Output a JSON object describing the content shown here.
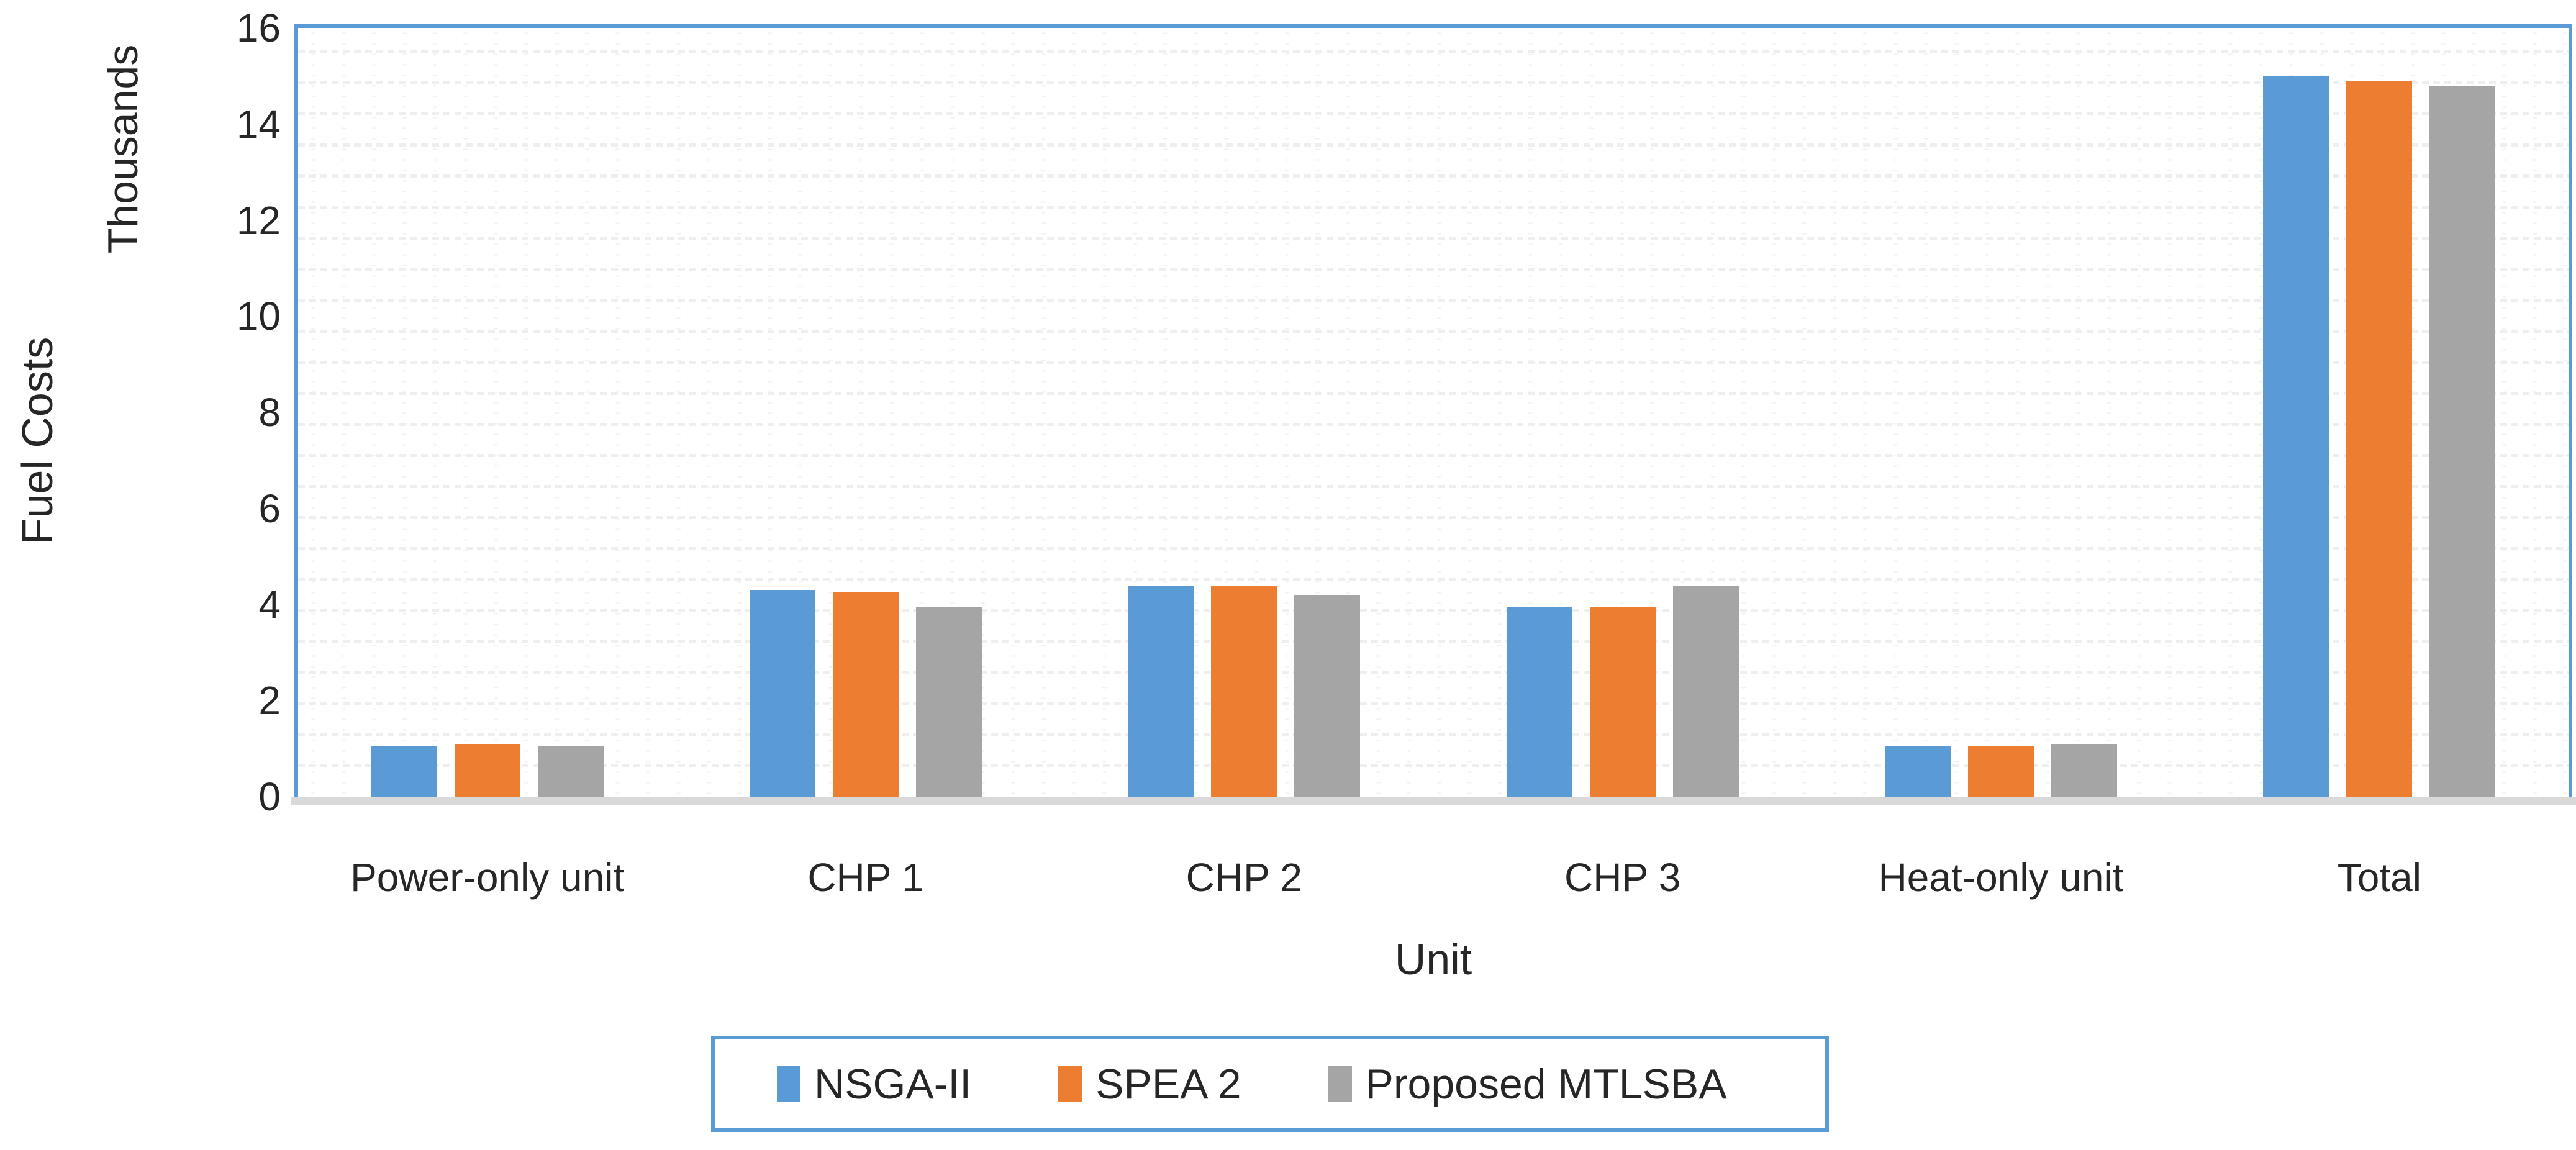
{
  "chart_data": {
    "type": "bar",
    "title": "",
    "categories": [
      "Power-only unit",
      "CHP 1",
      "CHP 2",
      "CHP 3",
      "Heat-only unit",
      "Total"
    ],
    "series": [
      {
        "name": "NSGA-II",
        "color": "#5B9BD5",
        "values": [
          1.05,
          4.3,
          4.4,
          3.95,
          1.05,
          15.0
        ]
      },
      {
        "name": "SPEA 2",
        "color": "#ED7D31",
        "values": [
          1.1,
          4.25,
          4.4,
          3.95,
          1.05,
          14.9
        ]
      },
      {
        "name": "Proposed MTLSBA",
        "color": "#A5A5A5",
        "values": [
          1.05,
          3.95,
          4.2,
          4.4,
          1.1,
          14.8
        ]
      }
    ],
    "xlabel": "Unit",
    "ylabel": "Fuel Costs",
    "y_units_label": "Thousands",
    "ylim": [
      0,
      16
    ],
    "ytick_step": 2,
    "yticks": [
      0,
      2,
      4,
      6,
      8,
      10,
      12,
      14,
      16
    ],
    "grid": "dotted",
    "legend_position": "bottom"
  },
  "colors": {
    "series_blue": "#5B9BD5",
    "series_orange": "#ED7D31",
    "series_gray": "#A5A5A5",
    "plot_border": "#5B9BD5",
    "legend_border": "#5B9BD5",
    "axis_line": "#D9D9D9",
    "grid_dot": "#F2F2F2",
    "text": "#262626",
    "background": "#FFFFFF"
  }
}
